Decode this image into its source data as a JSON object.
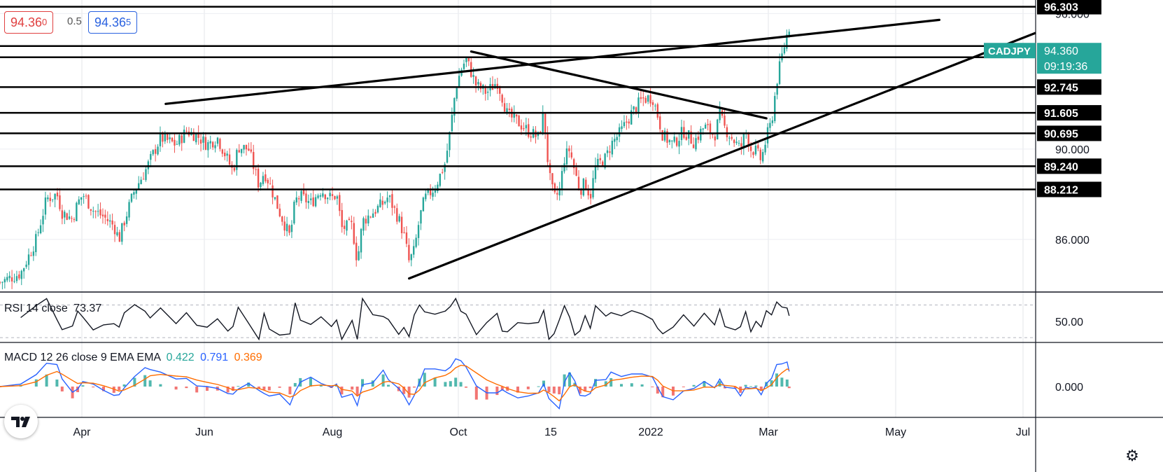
{
  "symbol": "CADJPY",
  "quote": {
    "bid_main": "94.36",
    "bid_sup": "0",
    "spread": "0.5",
    "ask_main": "94.36",
    "ask_sup": "5"
  },
  "last_price": {
    "label": "CADJPY",
    "price": "94.360",
    "countdown": "09:19:36"
  },
  "price_axis": {
    "ticks": [
      {
        "value": 96.0,
        "label": "96.000"
      },
      {
        "value": 90.0,
        "label": "90.000"
      },
      {
        "value": 86.0,
        "label": "86.000"
      }
    ],
    "levels": [
      {
        "value": 96.303,
        "label": "96.303"
      },
      {
        "value": 94.066,
        "label": "94.066"
      },
      {
        "value": 92.745,
        "label": "92.745"
      },
      {
        "value": 91.605,
        "label": "91.605"
      },
      {
        "value": 90.695,
        "label": "90.695"
      },
      {
        "value": 89.24,
        "label": "89.240"
      },
      {
        "value": 88.212,
        "label": "88.212"
      }
    ]
  },
  "chart_data": {
    "type": "candlestick",
    "time_labels": [
      "Apr",
      "Jun",
      "Aug",
      "Oct",
      "15",
      "2022",
      "Mar",
      "May",
      "Jul"
    ],
    "ylim": [
      83.7,
      96.6
    ],
    "horizontal_lines": [
      96.303,
      94.56,
      94.066,
      92.745,
      91.605,
      90.695,
      89.24,
      88.212
    ],
    "trendlines": [
      {
        "name": "upper channel",
        "from": {
          "x": 0.16,
          "y": 92.0
        },
        "to": {
          "x": 0.907,
          "y": 95.72
        }
      },
      {
        "name": "lower channel",
        "from": {
          "x": 0.395,
          "y": 84.27
        },
        "to": {
          "x": 0.957,
          "y": 94.37
        }
      },
      {
        "name": "descending",
        "from": {
          "x": 0.455,
          "y": 94.32
        },
        "to": {
          "x": 0.74,
          "y": 91.36
        }
      }
    ],
    "close_path": [
      [
        0.0,
        84.1
      ],
      [
        0.02,
        84.5
      ],
      [
        0.035,
        86.0
      ],
      [
        0.045,
        87.8
      ],
      [
        0.055,
        88.0
      ],
      [
        0.06,
        87.2
      ],
      [
        0.07,
        86.9
      ],
      [
        0.075,
        87.6
      ],
      [
        0.08,
        88.0
      ],
      [
        0.09,
        87.3
      ],
      [
        0.1,
        87.0
      ],
      [
        0.11,
        86.6
      ],
      [
        0.115,
        86.0
      ],
      [
        0.12,
        86.8
      ],
      [
        0.13,
        88.2
      ],
      [
        0.14,
        89.0
      ],
      [
        0.145,
        89.5
      ],
      [
        0.155,
        90.5
      ],
      [
        0.17,
        90.2
      ],
      [
        0.18,
        90.8
      ],
      [
        0.19,
        90.6
      ],
      [
        0.2,
        90.2
      ],
      [
        0.21,
        90.5
      ],
      [
        0.22,
        89.5
      ],
      [
        0.225,
        89.0
      ],
      [
        0.23,
        90.1
      ],
      [
        0.24,
        90.0
      ],
      [
        0.25,
        88.4
      ],
      [
        0.255,
        89.0
      ],
      [
        0.26,
        88.5
      ],
      [
        0.27,
        87.2
      ],
      [
        0.28,
        86.1
      ],
      [
        0.285,
        87.7
      ],
      [
        0.29,
        87.9
      ],
      [
        0.3,
        87.6
      ],
      [
        0.31,
        88.2
      ],
      [
        0.32,
        87.8
      ],
      [
        0.325,
        88.0
      ],
      [
        0.33,
        86.5
      ],
      [
        0.34,
        86.6
      ],
      [
        0.345,
        85.0
      ],
      [
        0.35,
        86.8
      ],
      [
        0.36,
        87.2
      ],
      [
        0.37,
        87.6
      ],
      [
        0.375,
        87.9
      ],
      [
        0.385,
        86.9
      ],
      [
        0.39,
        86.2
      ],
      [
        0.395,
        85.0
      ],
      [
        0.4,
        85.5
      ],
      [
        0.405,
        86.9
      ],
      [
        0.41,
        87.8
      ],
      [
        0.42,
        88.3
      ],
      [
        0.43,
        89.4
      ],
      [
        0.435,
        90.9
      ],
      [
        0.44,
        92.7
      ],
      [
        0.445,
        93.5
      ],
      [
        0.45,
        94.0
      ],
      [
        0.46,
        92.8
      ],
      [
        0.47,
        92.5
      ],
      [
        0.48,
        93.0
      ],
      [
        0.485,
        92.3
      ],
      [
        0.49,
        91.5
      ],
      [
        0.5,
        91.2
      ],
      [
        0.51,
        90.8
      ],
      [
        0.52,
        90.5
      ],
      [
        0.525,
        91.6
      ],
      [
        0.53,
        88.9
      ],
      [
        0.535,
        87.8
      ],
      [
        0.54,
        88.1
      ],
      [
        0.545,
        89.6
      ],
      [
        0.55,
        90.0
      ],
      [
        0.555,
        89.0
      ],
      [
        0.56,
        88.2
      ],
      [
        0.565,
        88.5
      ],
      [
        0.57,
        87.9
      ],
      [
        0.575,
        89.2
      ],
      [
        0.585,
        89.6
      ],
      [
        0.59,
        90.2
      ],
      [
        0.6,
        90.8
      ],
      [
        0.61,
        91.6
      ],
      [
        0.62,
        92.2
      ],
      [
        0.63,
        92.3
      ],
      [
        0.635,
        91.5
      ],
      [
        0.64,
        90.6
      ],
      [
        0.65,
        90.2
      ],
      [
        0.66,
        90.8
      ],
      [
        0.67,
        90.3
      ],
      [
        0.68,
        91.0
      ],
      [
        0.69,
        90.6
      ],
      [
        0.695,
        91.5
      ],
      [
        0.7,
        90.9
      ],
      [
        0.71,
        90.3
      ],
      [
        0.715,
        90.0
      ],
      [
        0.72,
        90.8
      ],
      [
        0.725,
        90.0
      ],
      [
        0.73,
        89.9
      ],
      [
        0.735,
        89.5
      ],
      [
        0.74,
        90.5
      ],
      [
        0.745,
        91.2
      ],
      [
        0.75,
        93.0
      ],
      [
        0.755,
        94.1
      ],
      [
        0.76,
        95.1
      ],
      [
        0.762,
        95.4
      ]
    ],
    "series": [
      {
        "name": "RSI 14 close",
        "last": "73.37",
        "tick": {
          "value": 50,
          "label": "50.00"
        }
      },
      {
        "name": "MACD 12 26 close 9 EMA EMA",
        "histogram_last": "0.422",
        "macd_last": "0.791",
        "signal_last": "0.369",
        "tick": {
          "value": 0,
          "label": "0.000"
        }
      }
    ]
  },
  "indicators": {
    "rsi": {
      "label": "RSI 14 close",
      "value": "73.37"
    },
    "macd": {
      "label": "MACD 12 26 close 9 EMA EMA",
      "v1": "0.422",
      "v2": "0.791",
      "v3": "0.369"
    }
  },
  "colors": {
    "up": "#26a69a",
    "down": "#ef5350",
    "macd_line": "#2962ff",
    "signal_line": "#ff6d00",
    "badge": "#26a69a",
    "text": "#131722"
  },
  "icons": {
    "logo": "tradingview-logo-icon",
    "settings": "gear-icon"
  }
}
